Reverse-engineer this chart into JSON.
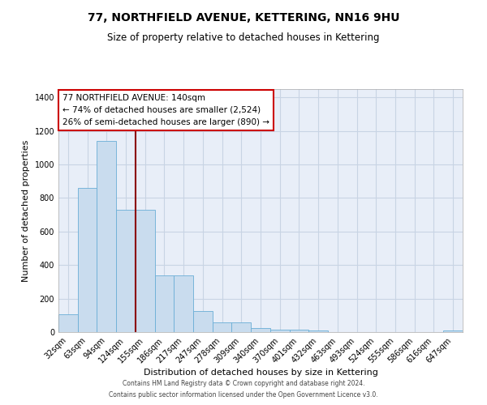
{
  "title": "77, NORTHFIELD AVENUE, KETTERING, NN16 9HU",
  "subtitle": "Size of property relative to detached houses in Kettering",
  "xlabel": "Distribution of detached houses by size in Kettering",
  "ylabel": "Number of detached properties",
  "bar_labels": [
    "32sqm",
    "63sqm",
    "94sqm",
    "124sqm",
    "155sqm",
    "186sqm",
    "217sqm",
    "247sqm",
    "278sqm",
    "309sqm",
    "340sqm",
    "370sqm",
    "401sqm",
    "432sqm",
    "463sqm",
    "493sqm",
    "524sqm",
    "555sqm",
    "586sqm",
    "616sqm",
    "647sqm"
  ],
  "bar_values": [
    105,
    860,
    1140,
    730,
    730,
    340,
    340,
    125,
    60,
    60,
    25,
    15,
    15,
    10,
    0,
    0,
    0,
    0,
    0,
    0,
    10
  ],
  "bar_color": "#c9dcee",
  "bar_edge_color": "#6aaed6",
  "vline_x": 3.5,
  "vline_color": "#8b0000",
  "ylim": [
    0,
    1450
  ],
  "yticks": [
    0,
    200,
    400,
    600,
    800,
    1000,
    1200,
    1400
  ],
  "annotation_title": "77 NORTHFIELD AVENUE: 140sqm",
  "annotation_line1": "← 74% of detached houses are smaller (2,524)",
  "annotation_line2": "26% of semi-detached houses are larger (890) →",
  "annotation_box_color": "#ffffff",
  "annotation_box_edge": "#cc0000",
  "footnote1": "Contains HM Land Registry data © Crown copyright and database right 2024.",
  "footnote2": "Contains public sector information licensed under the Open Government Licence v3.0.",
  "plot_bg_color": "#e8eef8",
  "background_color": "#ffffff",
  "grid_color": "#c8d4e4",
  "title_fontsize": 10,
  "subtitle_fontsize": 8.5,
  "xlabel_fontsize": 8,
  "ylabel_fontsize": 8,
  "tick_fontsize": 7,
  "annot_fontsize": 7.5,
  "footnote_fontsize": 5.5
}
